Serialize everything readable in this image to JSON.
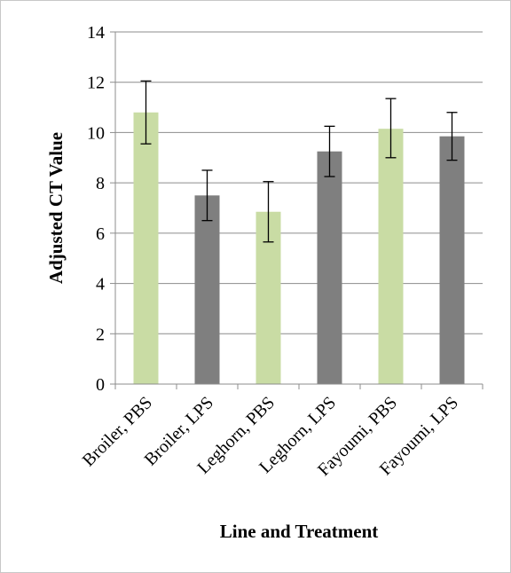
{
  "chart_data": {
    "type": "bar",
    "title": "",
    "xlabel": "Line and Treatment",
    "ylabel": "Adjusted CT Value",
    "ylim": [
      0,
      14
    ],
    "yticks": [
      0,
      2,
      4,
      6,
      8,
      10,
      12,
      14
    ],
    "ytick_labels": [
      "0",
      "2",
      "4",
      "6",
      "8",
      "10",
      "12",
      "14"
    ],
    "grid": true,
    "legend": "none",
    "categories": [
      "Broiler, PBS",
      "Broiler, LPS",
      "Leghorn, PBS",
      "Leghorn, LPS",
      "Fayoumi, PBS",
      "Fayoumi, LPS"
    ],
    "values": [
      10.8,
      7.5,
      6.85,
      9.25,
      10.15,
      9.85
    ],
    "error_low": [
      9.55,
      6.5,
      5.65,
      8.25,
      9.0,
      8.9
    ],
    "error_high": [
      12.05,
      8.5,
      8.05,
      10.25,
      11.35,
      10.8
    ],
    "bar_colors": [
      "#c9dca4",
      "#7f7f7f",
      "#c9dca4",
      "#7f7f7f",
      "#c9dca4",
      "#7f7f7f"
    ],
    "gridline_color": "#8c8c8c",
    "axis_color": "#8c8c8c",
    "errorbar_color": "#000000"
  }
}
